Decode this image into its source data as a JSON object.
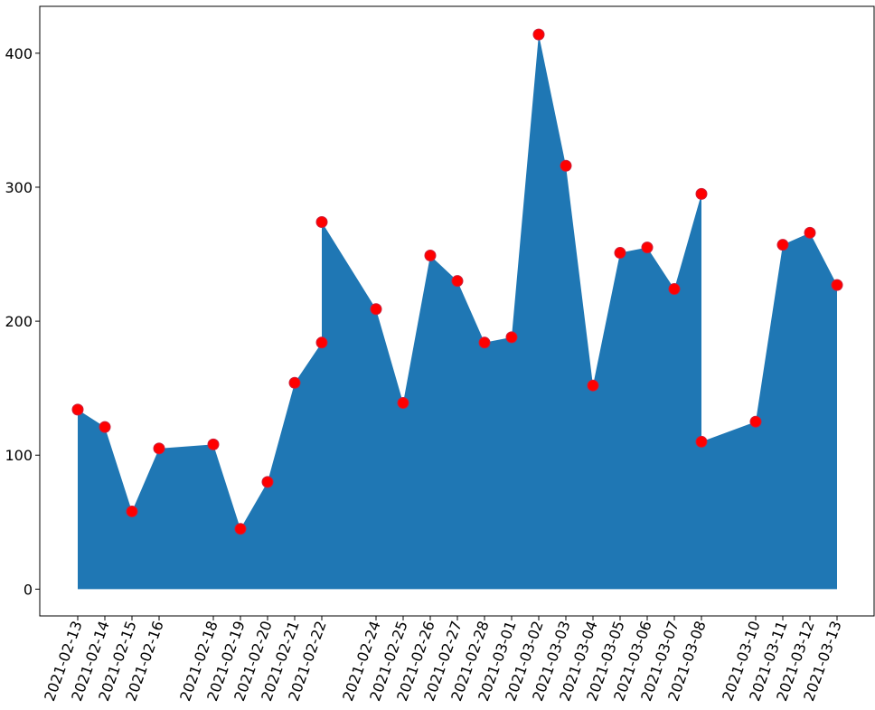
{
  "chart_data": {
    "type": "area",
    "title": "",
    "xlabel": "",
    "ylabel": "",
    "ylim": [
      -20,
      435
    ],
    "yticks": [
      0,
      100,
      200,
      300,
      400
    ],
    "grid": false,
    "legend": "none",
    "fill_color": "#1f77b4",
    "marker_color": "#ff0000",
    "x_tick_labels": [
      "2021-02-13",
      "2021-02-14",
      "2021-02-15",
      "2021-02-16",
      "2021-02-18",
      "2021-02-19",
      "2021-02-20",
      "2021-02-21",
      "2021-02-22",
      "2021-02-24",
      "2021-02-25",
      "2021-02-26",
      "2021-02-27",
      "2021-02-28",
      "2021-03-01",
      "2021-03-02",
      "2021-03-03",
      "2021-03-04",
      "2021-03-05",
      "2021-03-06",
      "2021-03-07",
      "2021-03-08",
      "2021-03-10",
      "2021-03-11",
      "2021-03-12",
      "2021-03-13"
    ],
    "points": [
      {
        "x": "2021-02-13",
        "y": 134
      },
      {
        "x": "2021-02-14",
        "y": 121
      },
      {
        "x": "2021-02-15",
        "y": 58
      },
      {
        "x": "2021-02-16",
        "y": 105
      },
      {
        "x": "2021-02-18",
        "y": 108
      },
      {
        "x": "2021-02-19",
        "y": 45
      },
      {
        "x": "2021-02-20",
        "y": 80
      },
      {
        "x": "2021-02-21",
        "y": 154
      },
      {
        "x": "2021-02-22",
        "y": 184
      },
      {
        "x": "2021-02-22",
        "y": 274
      },
      {
        "x": "2021-02-24",
        "y": 209
      },
      {
        "x": "2021-02-25",
        "y": 139
      },
      {
        "x": "2021-02-26",
        "y": 249
      },
      {
        "x": "2021-02-27",
        "y": 230
      },
      {
        "x": "2021-02-28",
        "y": 184
      },
      {
        "x": "2021-03-01",
        "y": 188
      },
      {
        "x": "2021-03-02",
        "y": 414
      },
      {
        "x": "2021-03-03",
        "y": 316
      },
      {
        "x": "2021-03-04",
        "y": 152
      },
      {
        "x": "2021-03-05",
        "y": 251
      },
      {
        "x": "2021-03-06",
        "y": 255
      },
      {
        "x": "2021-03-07",
        "y": 224
      },
      {
        "x": "2021-03-08",
        "y": 295
      },
      {
        "x": "2021-03-08",
        "y": 110
      },
      {
        "x": "2021-03-10",
        "y": 125
      },
      {
        "x": "2021-03-11",
        "y": 257
      },
      {
        "x": "2021-03-12",
        "y": 266
      },
      {
        "x": "2021-03-13",
        "y": 227
      }
    ]
  }
}
